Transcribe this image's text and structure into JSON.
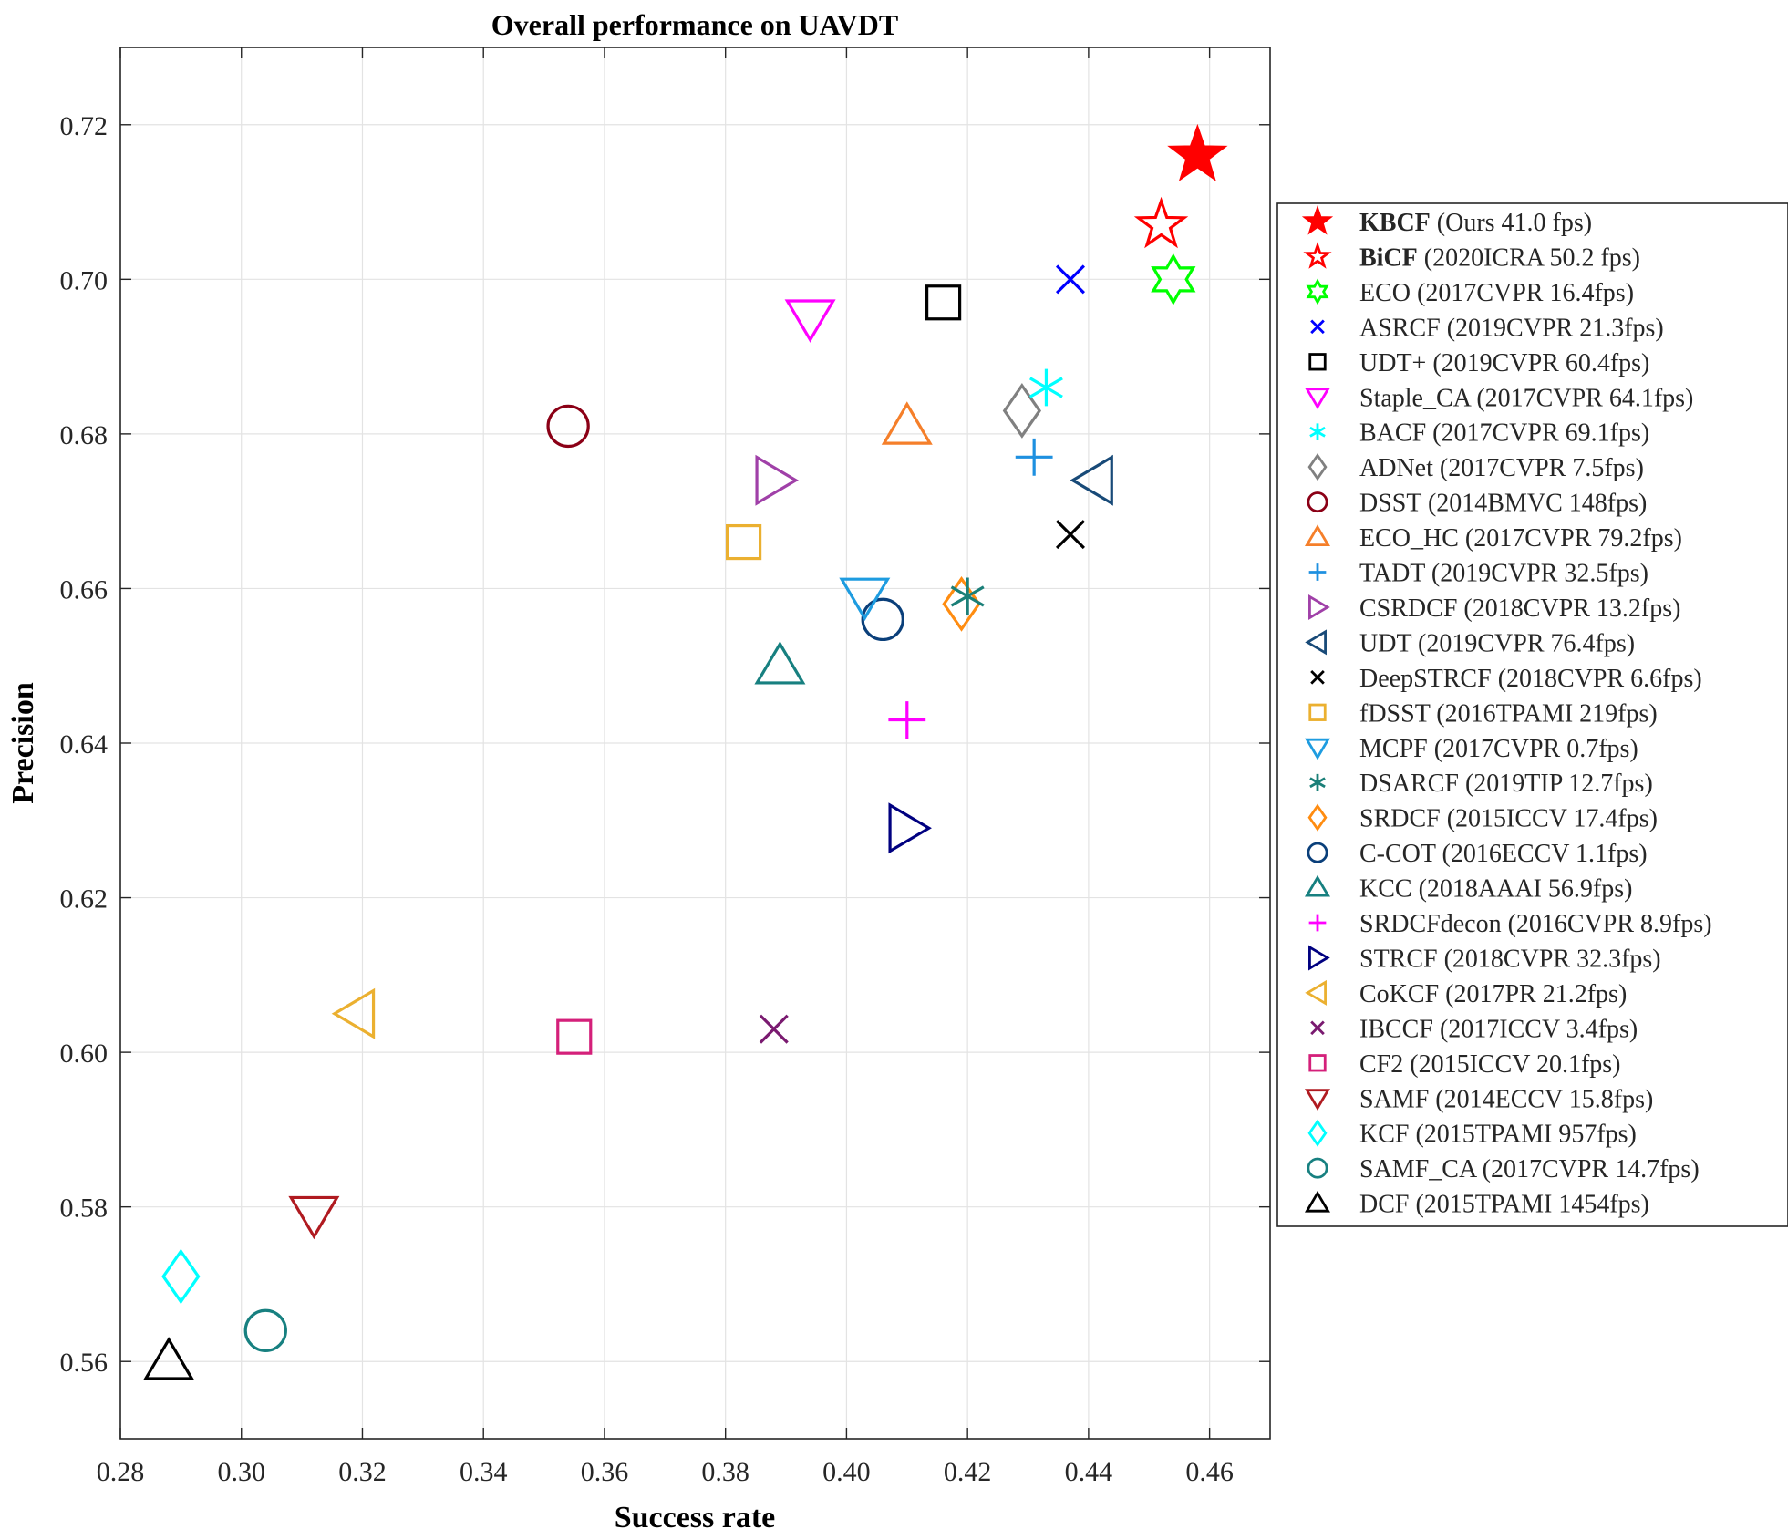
{
  "chart_data": {
    "type": "scatter",
    "title": "Overall performance on UAVDT",
    "xlabel": "Success rate",
    "ylabel": "Precision",
    "xlim": [
      0.28,
      0.47
    ],
    "ylim": [
      0.55,
      0.73
    ],
    "xticks": [
      0.28,
      0.3,
      0.32,
      0.34,
      0.36,
      0.38,
      0.4,
      0.42,
      0.44,
      0.46
    ],
    "yticks": [
      0.56,
      0.58,
      0.6,
      0.62,
      0.64,
      0.66,
      0.68,
      0.7,
      0.72
    ],
    "xtick_labels": [
      "0.28",
      "0.30",
      "0.32",
      "0.34",
      "0.36",
      "0.38",
      "0.40",
      "0.42",
      "0.44",
      "0.46"
    ],
    "ytick_labels": [
      "0.56",
      "0.58",
      "0.60",
      "0.62",
      "0.64",
      "0.66",
      "0.68",
      "0.70",
      "0.72"
    ],
    "grid": true,
    "legend_position": "outside-right",
    "series": [
      {
        "name": "KBCF",
        "detail": "(Ours 41.0 fps)",
        "bold": true,
        "marker": "star-filled",
        "color": "#ff0000",
        "x": 0.458,
        "y": 0.716
      },
      {
        "name": "BiCF",
        "detail": "(2020ICRA 50.2 fps)",
        "bold": true,
        "marker": "star",
        "color": "#ff0000",
        "x": 0.452,
        "y": 0.707
      },
      {
        "name": "ECO",
        "detail": "(2017CVPR 16.4fps)",
        "bold": false,
        "marker": "hexagram",
        "color": "#00ff00",
        "x": 0.454,
        "y": 0.7
      },
      {
        "name": "ASRCF",
        "detail": "(2019CVPR 21.3fps)",
        "bold": false,
        "marker": "x",
        "color": "#0000ff",
        "x": 0.437,
        "y": 0.7
      },
      {
        "name": "UDT+",
        "detail": "(2019CVPR 60.4fps)",
        "bold": false,
        "marker": "square",
        "color": "#000000",
        "x": 0.416,
        "y": 0.697
      },
      {
        "name": "Staple_CA",
        "detail": "(2017CVPR 64.1fps)",
        "bold": false,
        "marker": "triangle-down",
        "color": "#ff00ff",
        "x": 0.394,
        "y": 0.695
      },
      {
        "name": "BACF",
        "detail": "(2017CVPR 69.1fps)",
        "bold": false,
        "marker": "asterisk",
        "color": "#00ffff",
        "x": 0.433,
        "y": 0.686
      },
      {
        "name": "ADNet",
        "detail": "(2017CVPR 7.5fps)",
        "bold": false,
        "marker": "diamond",
        "color": "#808080",
        "x": 0.429,
        "y": 0.683
      },
      {
        "name": "DSST",
        "detail": "(2014BMVC 148fps)",
        "bold": false,
        "marker": "circle",
        "color": "#8b0016",
        "x": 0.354,
        "y": 0.681
      },
      {
        "name": "ECO_HC",
        "detail": "(2017CVPR 79.2fps)",
        "bold": false,
        "marker": "triangle-up",
        "color": "#f57f2a",
        "x": 0.41,
        "y": 0.681
      },
      {
        "name": "TADT",
        "detail": "(2019CVPR 32.5fps)",
        "bold": false,
        "marker": "plus",
        "color": "#1e90e0",
        "x": 0.431,
        "y": 0.677
      },
      {
        "name": "CSRDCF",
        "detail": "(2018CVPR 13.2fps)",
        "bold": false,
        "marker": "triangle-right",
        "color": "#a040a8",
        "x": 0.388,
        "y": 0.674
      },
      {
        "name": "UDT",
        "detail": "(2019CVPR 76.4fps)",
        "bold": false,
        "marker": "triangle-left",
        "color": "#184a78",
        "x": 0.441,
        "y": 0.674
      },
      {
        "name": "DeepSTRCF",
        "detail": "(2018CVPR 6.6fps)",
        "bold": false,
        "marker": "x",
        "color": "#000000",
        "x": 0.437,
        "y": 0.667
      },
      {
        "name": "fDSST",
        "detail": "(2016TPAMI 219fps)",
        "bold": false,
        "marker": "square",
        "color": "#ebb030",
        "x": 0.383,
        "y": 0.666
      },
      {
        "name": "MCPF",
        "detail": "(2017CVPR 0.7fps)",
        "bold": false,
        "marker": "triangle-down",
        "color": "#1e9ce0",
        "x": 0.403,
        "y": 0.659
      },
      {
        "name": "DSARCF",
        "detail": "(2019TIP 12.7fps)",
        "bold": false,
        "marker": "asterisk",
        "color": "#1a7f78",
        "x": 0.42,
        "y": 0.659
      },
      {
        "name": "SRDCF",
        "detail": "(2015ICCV 17.4fps)",
        "bold": false,
        "marker": "diamond",
        "color": "#ff8c10",
        "x": 0.419,
        "y": 0.658
      },
      {
        "name": "C-COT",
        "detail": "(2016ECCV 1.1fps)",
        "bold": false,
        "marker": "circle",
        "color": "#0a3f7a",
        "x": 0.406,
        "y": 0.656
      },
      {
        "name": "KCC",
        "detail": "(2018AAAI 56.9fps)",
        "bold": false,
        "marker": "triangle-up",
        "color": "#178080",
        "x": 0.389,
        "y": 0.65
      },
      {
        "name": "SRDCFdecon",
        "detail": "(2016CVPR 8.9fps)",
        "bold": false,
        "marker": "plus",
        "color": "#ff00ff",
        "x": 0.41,
        "y": 0.643
      },
      {
        "name": "STRCF",
        "detail": "(2018CVPR 32.3fps)",
        "bold": false,
        "marker": "triangle-right",
        "color": "#000080",
        "x": 0.41,
        "y": 0.629
      },
      {
        "name": "CoKCF",
        "detail": "(2017PR 21.2fps)",
        "bold": false,
        "marker": "triangle-left",
        "color": "#ebb030",
        "x": 0.319,
        "y": 0.605
      },
      {
        "name": "IBCCF",
        "detail": "(2017ICCV 3.4fps)",
        "bold": false,
        "marker": "x",
        "color": "#7a1a70",
        "x": 0.388,
        "y": 0.603
      },
      {
        "name": "CF2",
        "detail": "(2015ICCV 20.1fps)",
        "bold": false,
        "marker": "square",
        "color": "#d4207a",
        "x": 0.355,
        "y": 0.602
      },
      {
        "name": "SAMF",
        "detail": "(2014ECCV 15.8fps)",
        "bold": false,
        "marker": "triangle-down",
        "color": "#b01a20",
        "x": 0.312,
        "y": 0.579
      },
      {
        "name": "KCF",
        "detail": "(2015TPAMI 957fps)",
        "bold": false,
        "marker": "diamond",
        "color": "#00ffff",
        "x": 0.29,
        "y": 0.571
      },
      {
        "name": "SAMF_CA",
        "detail": "(2017CVPR 14.7fps)",
        "bold": false,
        "marker": "circle",
        "color": "#178080",
        "x": 0.304,
        "y": 0.564
      },
      {
        "name": "DCF",
        "detail": "(2015TPAMI 1454fps)",
        "bold": false,
        "marker": "triangle-up",
        "color": "#000000",
        "x": 0.288,
        "y": 0.56
      }
    ]
  }
}
